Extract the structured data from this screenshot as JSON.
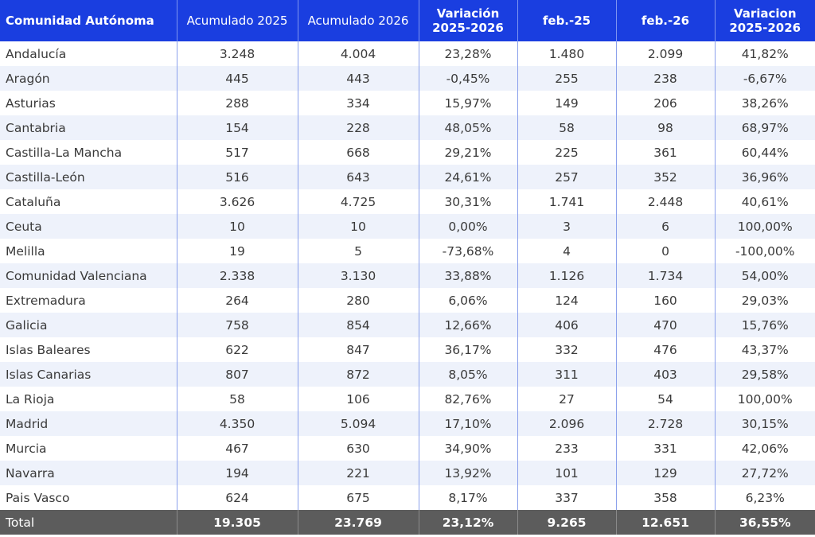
{
  "table": {
    "headers": [
      "Comunidad Autónoma",
      "Acumulado 2025",
      "Acumulado 2026",
      "Variación 2025-2026",
      "feb.-25",
      "feb.-26",
      "Variacion 2025-2026"
    ],
    "rows": [
      [
        "Andalucía",
        "3.248",
        "4.004",
        "23,28%",
        "1.480",
        "2.099",
        "41,82%"
      ],
      [
        "Aragón",
        "445",
        "443",
        "-0,45%",
        "255",
        "238",
        "-6,67%"
      ],
      [
        "Asturias",
        "288",
        "334",
        "15,97%",
        "149",
        "206",
        "38,26%"
      ],
      [
        "Cantabria",
        "154",
        "228",
        "48,05%",
        "58",
        "98",
        "68,97%"
      ],
      [
        "Castilla-La Mancha",
        "517",
        "668",
        "29,21%",
        "225",
        "361",
        "60,44%"
      ],
      [
        "Castilla-León",
        "516",
        "643",
        "24,61%",
        "257",
        "352",
        "36,96%"
      ],
      [
        "Cataluña",
        "3.626",
        "4.725",
        "30,31%",
        "1.741",
        "2.448",
        "40,61%"
      ],
      [
        "Ceuta",
        "10",
        "10",
        "0,00%",
        "3",
        "6",
        "100,00%"
      ],
      [
        "Melilla",
        "19",
        "5",
        "-73,68%",
        "4",
        "0",
        "-100,00%"
      ],
      [
        "Comunidad Valenciana",
        "2.338",
        "3.130",
        "33,88%",
        "1.126",
        "1.734",
        "54,00%"
      ],
      [
        "Extremadura",
        "264",
        "280",
        "6,06%",
        "124",
        "160",
        "29,03%"
      ],
      [
        "Galicia",
        "758",
        "854",
        "12,66%",
        "406",
        "470",
        "15,76%"
      ],
      [
        "Islas Baleares",
        "622",
        "847",
        "36,17%",
        "332",
        "476",
        "43,37%"
      ],
      [
        "Islas Canarias",
        "807",
        "872",
        "8,05%",
        "311",
        "403",
        "29,58%"
      ],
      [
        "La Rioja",
        "58",
        "106",
        "82,76%",
        "27",
        "54",
        "100,00%"
      ],
      [
        "Madrid",
        "4.350",
        "5.094",
        "17,10%",
        "2.096",
        "2.728",
        "30,15%"
      ],
      [
        "Murcia",
        "467",
        "630",
        "34,90%",
        "233",
        "331",
        "42,06%"
      ],
      [
        "Navarra",
        "194",
        "221",
        "13,92%",
        "101",
        "129",
        "27,72%"
      ],
      [
        "Pais Vasco",
        "624",
        "675",
        "8,17%",
        "337",
        "358",
        "6,23%"
      ]
    ],
    "total": [
      "Total",
      "19.305",
      "23.769",
      "23,12%",
      "9.265",
      "12.651",
      "36,55%"
    ]
  },
  "colors": {
    "header_bg": "#1a3ee0",
    "row_alt_bg": "#eef2fb",
    "total_bg": "#5c5c5c"
  }
}
